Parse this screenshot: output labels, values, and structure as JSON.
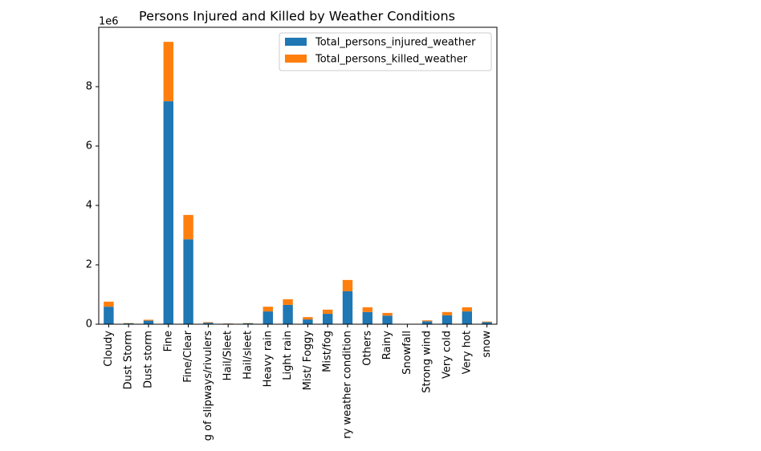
{
  "chart_data": {
    "type": "stacked_bar",
    "title": "Persons Injured and Killed by Weather Conditions",
    "y_offset_label": "1e6",
    "categories": [
      "Cloudy",
      "Dust Storm",
      "Dust storm",
      "Fine",
      "Fine/Clear",
      "g of slipways/rivulers",
      "Hail/Sleet",
      "Hail/sleet",
      "Heavy rain",
      "Light rain",
      "Mist/ Foggy",
      "Mist/fog",
      "ry weather condition",
      "Others",
      "Rainy",
      "Snowfall",
      "Strong wind",
      "Very cold",
      "Very hot",
      "snow"
    ],
    "series": [
      {
        "name": "Total_persons_injured_weather",
        "color": "#1f77b4",
        "values": [
          0.59,
          0.03,
          0.12,
          7.51,
          2.86,
          0.05,
          0.02,
          0.03,
          0.43,
          0.65,
          0.16,
          0.35,
          1.11,
          0.41,
          0.29,
          0.005,
          0.1,
          0.3,
          0.43,
          0.07
        ]
      },
      {
        "name": "Total_persons_killed_weather",
        "color": "#ff7f0e",
        "values": [
          0.17,
          0.01,
          0.03,
          2.0,
          0.82,
          0.02,
          0.005,
          0.01,
          0.16,
          0.19,
          0.08,
          0.14,
          0.38,
          0.16,
          0.09,
          0.002,
          0.03,
          0.11,
          0.14,
          0.02
        ]
      }
    ],
    "ylim": [
      0,
      10
    ],
    "yticks": [
      0,
      2,
      4,
      6,
      8
    ],
    "grid": false,
    "legend": "upper right"
  }
}
